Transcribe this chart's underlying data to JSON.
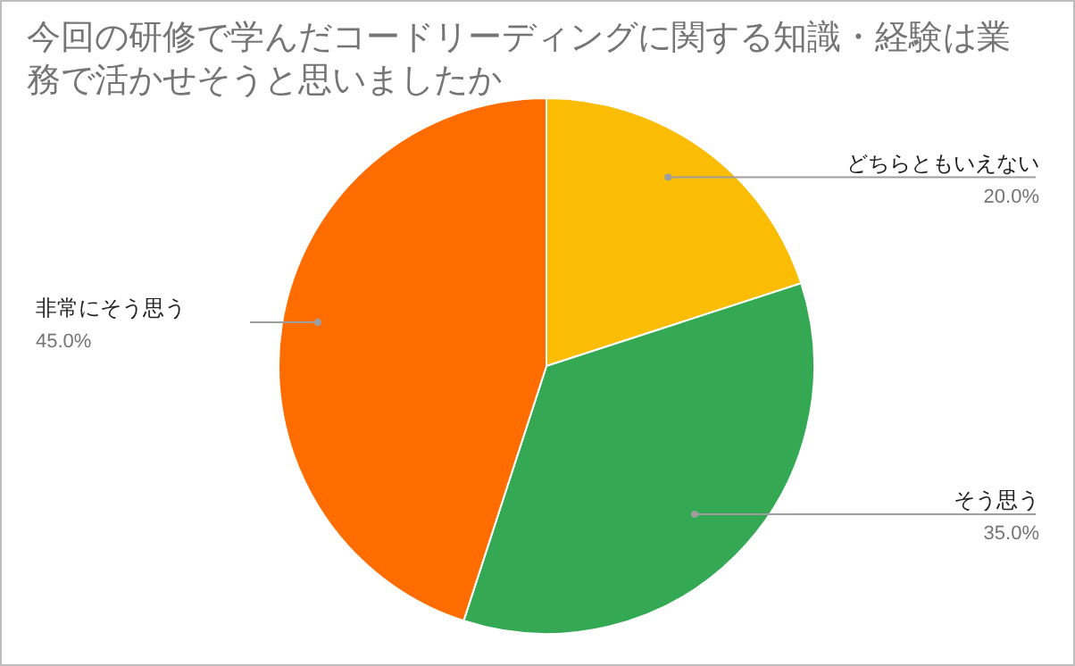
{
  "chart_data": {
    "type": "pie",
    "title": "今回の研修で学んだコードリーディングに関する知識・経験は業務で活かせそうと思いましたか",
    "categories": [
      "どちらともいえない",
      "そう思う",
      "非常にそう思う"
    ],
    "values": [
      20,
      35,
      45
    ],
    "value_labels": [
      "20.0%",
      "35.0%",
      "45.0%"
    ],
    "colors": [
      "#fbbc04",
      "#34a853",
      "#ff6d01"
    ]
  }
}
